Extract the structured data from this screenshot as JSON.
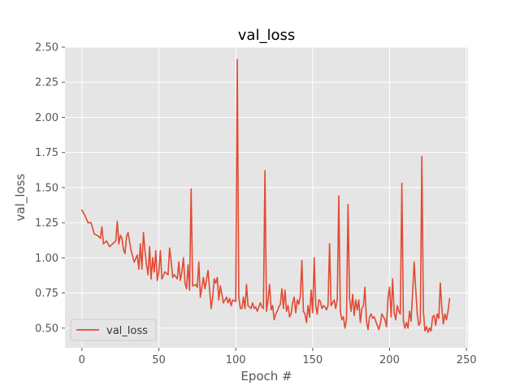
{
  "chart_data": {
    "type": "line",
    "title": "val_loss",
    "xlabel": "Epoch #",
    "ylabel": "val_loss",
    "xlim": [
      -11,
      251
    ],
    "ylim": [
      0.36,
      2.5
    ],
    "x_ticks": [
      0,
      50,
      100,
      150,
      200,
      250
    ],
    "y_ticks": [
      0.5,
      0.75,
      1.0,
      1.25,
      1.5,
      1.75,
      2.0,
      2.25,
      2.5
    ],
    "x_tick_labels": [
      "0",
      "50",
      "100",
      "150",
      "200",
      "250"
    ],
    "y_tick_labels": [
      "0.50",
      "0.75",
      "1.00",
      "1.25",
      "1.50",
      "1.75",
      "2.00",
      "2.25",
      "2.50"
    ],
    "grid": true,
    "legend_position": "lower-left",
    "series": [
      {
        "name": "val_loss",
        "color": "#e24a33",
        "points": [
          [
            0,
            1.34
          ],
          [
            2,
            1.3
          ],
          [
            4,
            1.25
          ],
          [
            6,
            1.25
          ],
          [
            8,
            1.17
          ],
          [
            10,
            1.16
          ],
          [
            12,
            1.14
          ],
          [
            13,
            1.22
          ],
          [
            14,
            1.1
          ],
          [
            16,
            1.12
          ],
          [
            18,
            1.08
          ],
          [
            20,
            1.1
          ],
          [
            22,
            1.12
          ],
          [
            23,
            1.26
          ],
          [
            24,
            1.1
          ],
          [
            25,
            1.16
          ],
          [
            26,
            1.14
          ],
          [
            27,
            1.06
          ],
          [
            28,
            1.03
          ],
          [
            29,
            1.15
          ],
          [
            30,
            1.18
          ],
          [
            32,
            1.05
          ],
          [
            34,
            0.97
          ],
          [
            36,
            1.02
          ],
          [
            37,
            0.92
          ],
          [
            38,
            1.1
          ],
          [
            39,
            0.92
          ],
          [
            40,
            1.18
          ],
          [
            41,
            1.05
          ],
          [
            42,
            0.95
          ],
          [
            43,
            0.88
          ],
          [
            44,
            1.08
          ],
          [
            45,
            0.85
          ],
          [
            46,
            1.0
          ],
          [
            47,
            0.9
          ],
          [
            48,
            1.05
          ],
          [
            49,
            0.84
          ],
          [
            50,
            0.9
          ],
          [
            51,
            1.05
          ],
          [
            52,
            0.85
          ],
          [
            54,
            0.9
          ],
          [
            56,
            0.88
          ],
          [
            57,
            1.07
          ],
          [
            58,
            0.98
          ],
          [
            59,
            0.86
          ],
          [
            60,
            0.88
          ],
          [
            62,
            0.85
          ],
          [
            63,
            0.97
          ],
          [
            64,
            0.84
          ],
          [
            65,
            0.9
          ],
          [
            66,
            1.0
          ],
          [
            67,
            0.82
          ],
          [
            68,
            0.78
          ],
          [
            69,
            0.95
          ],
          [
            70,
            0.77
          ],
          [
            71,
            1.49
          ],
          [
            72,
            0.8
          ],
          [
            74,
            0.81
          ],
          [
            75,
            0.79
          ],
          [
            76,
            0.97
          ],
          [
            77,
            0.72
          ],
          [
            78,
            0.79
          ],
          [
            79,
            0.86
          ],
          [
            80,
            0.78
          ],
          [
            82,
            0.91
          ],
          [
            84,
            0.64
          ],
          [
            85,
            0.72
          ],
          [
            86,
            0.85
          ],
          [
            87,
            0.82
          ],
          [
            88,
            0.86
          ],
          [
            89,
            0.7
          ],
          [
            90,
            0.8
          ],
          [
            92,
            0.68
          ],
          [
            94,
            0.72
          ],
          [
            95,
            0.68
          ],
          [
            96,
            0.71
          ],
          [
            97,
            0.66
          ],
          [
            98,
            0.7
          ],
          [
            100,
            0.69
          ],
          [
            101,
            2.41
          ],
          [
            102,
            0.72
          ],
          [
            103,
            0.64
          ],
          [
            104,
            0.64
          ],
          [
            105,
            0.72
          ],
          [
            106,
            0.64
          ],
          [
            107,
            0.81
          ],
          [
            108,
            0.66
          ],
          [
            110,
            0.64
          ],
          [
            111,
            0.68
          ],
          [
            112,
            0.64
          ],
          [
            113,
            0.65
          ],
          [
            114,
            0.62
          ],
          [
            116,
            0.68
          ],
          [
            117,
            0.65
          ],
          [
            118,
            0.64
          ],
          [
            119,
            1.62
          ],
          [
            120,
            0.62
          ],
          [
            121,
            0.7
          ],
          [
            122,
            0.81
          ],
          [
            123,
            0.63
          ],
          [
            124,
            0.66
          ],
          [
            125,
            0.56
          ],
          [
            126,
            0.6
          ],
          [
            127,
            0.62
          ],
          [
            128,
            0.65
          ],
          [
            129,
            0.67
          ],
          [
            130,
            0.78
          ],
          [
            131,
            0.64
          ],
          [
            132,
            0.77
          ],
          [
            133,
            0.62
          ],
          [
            134,
            0.66
          ],
          [
            135,
            0.58
          ],
          [
            136,
            0.6
          ],
          [
            137,
            0.68
          ],
          [
            138,
            0.72
          ],
          [
            139,
            0.61
          ],
          [
            140,
            0.7
          ],
          [
            141,
            0.67
          ],
          [
            142,
            0.73
          ],
          [
            143,
            0.98
          ],
          [
            144,
            0.62
          ],
          [
            145,
            0.6
          ],
          [
            146,
            0.54
          ],
          [
            147,
            0.66
          ],
          [
            148,
            0.58
          ],
          [
            149,
            0.77
          ],
          [
            150,
            0.61
          ],
          [
            151,
            1.0
          ],
          [
            152,
            0.66
          ],
          [
            153,
            0.6
          ],
          [
            154,
            0.7
          ],
          [
            155,
            0.69
          ],
          [
            156,
            0.64
          ],
          [
            157,
            0.66
          ],
          [
            158,
            0.65
          ],
          [
            159,
            0.63
          ],
          [
            160,
            0.66
          ],
          [
            161,
            1.1
          ],
          [
            162,
            0.66
          ],
          [
            163,
            0.68
          ],
          [
            164,
            0.7
          ],
          [
            165,
            0.64
          ],
          [
            166,
            0.7
          ],
          [
            167,
            1.44
          ],
          [
            168,
            0.62
          ],
          [
            169,
            0.56
          ],
          [
            170,
            0.58
          ],
          [
            171,
            0.5
          ],
          [
            172,
            0.56
          ],
          [
            173,
            1.38
          ],
          [
            174,
            0.71
          ],
          [
            175,
            0.62
          ],
          [
            176,
            0.74
          ],
          [
            177,
            0.59
          ],
          [
            178,
            0.7
          ],
          [
            179,
            0.63
          ],
          [
            180,
            0.7
          ],
          [
            181,
            0.54
          ],
          [
            182,
            0.64
          ],
          [
            183,
            0.66
          ],
          [
            184,
            0.79
          ],
          [
            185,
            0.55
          ],
          [
            186,
            0.49
          ],
          [
            187,
            0.58
          ],
          [
            188,
            0.6
          ],
          [
            189,
            0.57
          ],
          [
            190,
            0.58
          ],
          [
            191,
            0.55
          ],
          [
            192,
            0.52
          ],
          [
            193,
            0.49
          ],
          [
            194,
            0.53
          ],
          [
            195,
            0.6
          ],
          [
            196,
            0.58
          ],
          [
            197,
            0.56
          ],
          [
            198,
            0.51
          ],
          [
            199,
            0.72
          ],
          [
            200,
            0.79
          ],
          [
            201,
            0.58
          ],
          [
            202,
            0.85
          ],
          [
            203,
            0.61
          ],
          [
            204,
            0.56
          ],
          [
            205,
            0.66
          ],
          [
            206,
            0.62
          ],
          [
            207,
            0.6
          ],
          [
            208,
            1.53
          ],
          [
            209,
            0.55
          ],
          [
            210,
            0.5
          ],
          [
            211,
            0.54
          ],
          [
            212,
            0.5
          ],
          [
            213,
            0.62
          ],
          [
            214,
            0.55
          ],
          [
            215,
            0.75
          ],
          [
            216,
            0.97
          ],
          [
            217,
            0.78
          ],
          [
            218,
            0.6
          ],
          [
            219,
            0.52
          ],
          [
            220,
            0.54
          ],
          [
            221,
            1.72
          ],
          [
            222,
            0.62
          ],
          [
            223,
            0.48
          ],
          [
            224,
            0.51
          ],
          [
            225,
            0.47
          ],
          [
            226,
            0.5
          ],
          [
            227,
            0.48
          ],
          [
            228,
            0.58
          ],
          [
            229,
            0.59
          ],
          [
            230,
            0.52
          ],
          [
            231,
            0.6
          ],
          [
            232,
            0.57
          ],
          [
            233,
            0.82
          ],
          [
            234,
            0.64
          ],
          [
            235,
            0.53
          ],
          [
            236,
            0.6
          ],
          [
            237,
            0.56
          ],
          [
            238,
            0.62
          ],
          [
            239,
            0.71
          ]
        ]
      }
    ]
  }
}
